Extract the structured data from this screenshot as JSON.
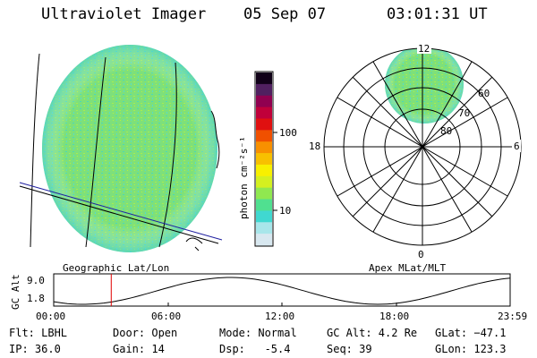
{
  "header": {
    "title": "Ultraviolet Imager",
    "date": "05 Sep 07",
    "time": "03:01:31 UT"
  },
  "left_panel": {
    "caption": "Geographic Lat/Lon"
  },
  "right_panel": {
    "caption": "Apex MLat/MLT",
    "mlt_labels": {
      "top": "12",
      "left": "18",
      "right": "6",
      "bottom": "0"
    },
    "lat_labels": [
      "60",
      "70",
      "80"
    ]
  },
  "colorbar": {
    "label": "photon cm⁻²s⁻¹",
    "ticks": [
      "100",
      "10"
    ],
    "colors": [
      "#d8e8f0",
      "#a8e6ea",
      "#40d8d0",
      "#50e090",
      "#90e850",
      "#d4f020",
      "#f8f000",
      "#f8c000",
      "#f89000",
      "#f05000",
      "#e01010",
      "#c0003a",
      "#900050",
      "#502060",
      "#100018"
    ]
  },
  "timeline": {
    "ylabel": "GC Alt",
    "ymax": "9.0",
    "ymin": "1.8",
    "ticks": [
      "00:00",
      "06:00",
      "12:00",
      "18:00",
      "23:59"
    ],
    "current_time_hours": 3.025
  },
  "info": {
    "row1": [
      "Flt: LBHL",
      "Door: Open",
      "Mode: Normal",
      "GC Alt: 4.2 Re",
      "GLat: −47.1"
    ],
    "row2": [
      "IP: 36.0",
      "Gain: 14",
      "Dsp:   -5.4",
      "Seq: 39",
      "GLon: 123.3"
    ]
  },
  "colors": {
    "marker": "#e00000",
    "track": "#2020a0",
    "image": "#7ee07a"
  }
}
